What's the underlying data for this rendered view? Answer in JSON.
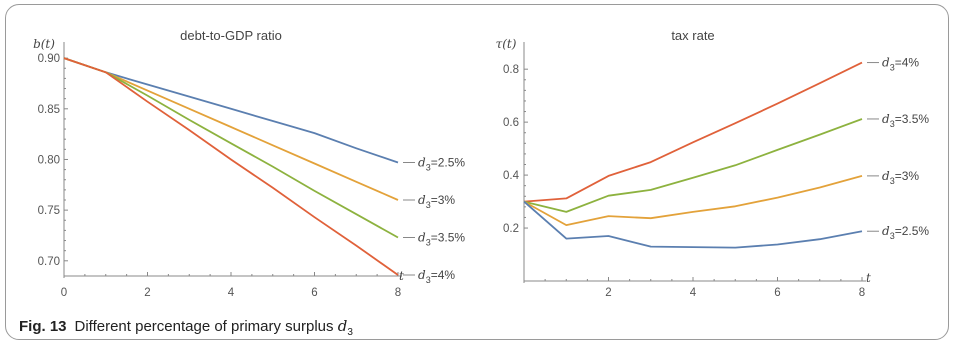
{
  "caption": {
    "label": "Fig. 13",
    "text": "Different percentage of primary surplus ",
    "var": "d",
    "var_sub": "3"
  },
  "colors": {
    "d3_2_5": "#5b7fb0",
    "d3_3": "#e3a23a",
    "d3_3_5": "#8db23f",
    "d3_4": "#e0613a",
    "axis": "#888888"
  },
  "chart_data": [
    {
      "type": "line",
      "title": "debt-to-GDP ratio",
      "ylabel": "b(t)",
      "xlabel": "t",
      "xlim": [
        0,
        8
      ],
      "ylim": [
        0.685,
        0.91
      ],
      "xticks": [
        0,
        2,
        4,
        6,
        8
      ],
      "yticks": [
        0.7,
        0.75,
        0.8,
        0.85,
        0.9
      ],
      "ytick_labels": [
        "0.70",
        "0.75",
        "0.80",
        "0.85",
        "0.90"
      ],
      "legend_position": "right end of lines",
      "series": [
        {
          "name": "d3=2.5%",
          "sub_base": "d",
          "sub": "3",
          "rest": "=2.5%",
          "color_key": "d3_2_5",
          "x": [
            0,
            1,
            2,
            3,
            4,
            5,
            6,
            7,
            8
          ],
          "y": [
            0.9,
            0.886,
            0.874,
            0.862,
            0.85,
            0.838,
            0.826,
            0.811,
            0.797
          ]
        },
        {
          "name": "d3=3%",
          "sub_base": "d",
          "sub": "3",
          "rest": "=3%",
          "color_key": "d3_3",
          "x": [
            0,
            1,
            2,
            3,
            4,
            5,
            6,
            7,
            8
          ],
          "y": [
            0.9,
            0.886,
            0.868,
            0.85,
            0.832,
            0.814,
            0.796,
            0.778,
            0.76
          ]
        },
        {
          "name": "d3=3.5%",
          "sub_base": "d",
          "sub": "3",
          "rest": "=3.5%",
          "color_key": "d3_3_5",
          "x": [
            0,
            1,
            2,
            3,
            4,
            5,
            6,
            7,
            8
          ],
          "y": [
            0.9,
            0.886,
            0.863,
            0.839,
            0.816,
            0.793,
            0.769,
            0.746,
            0.723
          ]
        },
        {
          "name": "d3=4%",
          "sub_base": "d",
          "sub": "3",
          "rest": "=4%",
          "color_key": "d3_4",
          "x": [
            0,
            1,
            2,
            3,
            4,
            5,
            6,
            7,
            8
          ],
          "y": [
            0.9,
            0.886,
            0.857,
            0.829,
            0.8,
            0.772,
            0.743,
            0.715,
            0.686
          ]
        }
      ]
    },
    {
      "type": "line",
      "title": "tax rate",
      "ylabel": "τ(t)",
      "xlabel": "t",
      "xlim": [
        0,
        8
      ],
      "ylim": [
        0.0,
        0.88
      ],
      "xticks": [
        2,
        4,
        6,
        8
      ],
      "yticks": [
        0.2,
        0.4,
        0.6,
        0.8
      ],
      "ytick_labels": [
        "0.2",
        "0.4",
        "0.6",
        "0.8"
      ],
      "legend_position": "right end of lines",
      "series": [
        {
          "name": "d3=4%",
          "sub_base": "d",
          "sub": "3",
          "rest": "=4%",
          "color_key": "d3_4",
          "x": [
            0,
            1,
            2,
            3,
            4,
            5,
            6,
            7,
            8
          ],
          "y": [
            0.3,
            0.312,
            0.397,
            0.449,
            0.524,
            0.596,
            0.67,
            0.747,
            0.825
          ]
        },
        {
          "name": "d3=3.5%",
          "sub_base": "d",
          "sub": "3",
          "rest": "=3.5%",
          "color_key": "d3_3_5",
          "x": [
            0,
            1,
            2,
            3,
            4,
            5,
            6,
            7,
            8
          ],
          "y": [
            0.3,
            0.261,
            0.322,
            0.344,
            0.39,
            0.437,
            0.495,
            0.553,
            0.612
          ]
        },
        {
          "name": "d3=3%",
          "sub_base": "d",
          "sub": "3",
          "rest": "=3%",
          "color_key": "d3_3",
          "x": [
            0,
            1,
            2,
            3,
            4,
            5,
            6,
            7,
            8
          ],
          "y": [
            0.3,
            0.211,
            0.245,
            0.237,
            0.261,
            0.282,
            0.315,
            0.353,
            0.397
          ]
        },
        {
          "name": "d3=2.5%",
          "sub_base": "d",
          "sub": "3",
          "rest": "=2.5%",
          "color_key": "d3_2_5",
          "x": [
            0,
            1,
            2,
            3,
            4,
            5,
            6,
            7,
            8
          ],
          "y": [
            0.3,
            0.16,
            0.17,
            0.13,
            0.128,
            0.126,
            0.138,
            0.158,
            0.188
          ]
        }
      ]
    }
  ]
}
